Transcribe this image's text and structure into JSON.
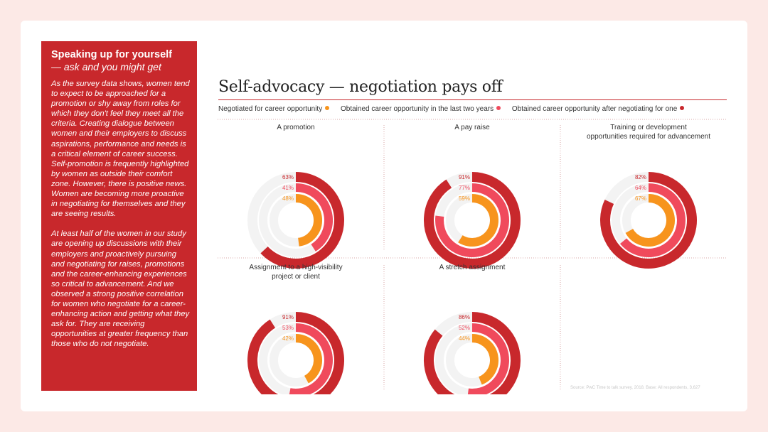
{
  "sidebar": {
    "heading": "Speaking up for yourself",
    "subheading": "— ask and you might get",
    "paragraph1": "As the survey data shows, women tend to expect to be approached for a promotion or shy away from roles for which they don't feel they meet all the criteria. Creating dialogue between women and their employers to discuss aspirations, performance and needs is a critical element of career success. Self-promotion is frequently highlighted by women as outside their comfort zone. However, there is positive news. Women are becoming more proactive in negotiating for themselves and they are seeing results.",
    "paragraph2": "At least half of the women in our study are opening up discussions with their employers and proactively pursuing and negotiating for raises, promotions and the career-enhancing experiences so critical to advancement. And we observed a strong positive correlation for women who negotiate for a career-enhancing action and getting what they ask for. They are receiving opportunities at greater frequency than those who do not negotiate."
  },
  "source": "Source: PwC Time to talk survey, 2018. Base: All respondents, 3,627",
  "colors": {
    "background": "#fce9e6",
    "sidebar": "#c8282c",
    "outer": "#c8282c",
    "middle": "#f04a5c",
    "inner": "#f7941d",
    "track": "#f3f3f3"
  },
  "chart_data": {
    "type": "radial-bar",
    "title": "Self-advocacy — negotiation pays off",
    "value_suffix": "%",
    "series": [
      {
        "name": "Negotiated for career opportunity",
        "color": "#f7941d"
      },
      {
        "name": "Obtained career opportunity in the last two years",
        "color": "#f04a5c"
      },
      {
        "name": "Obtained career opportunity after negotiating for one",
        "color": "#c8282c"
      }
    ],
    "panels": [
      {
        "title": [
          "A promotion"
        ],
        "negotiated": 48,
        "obtained_two_years": 41,
        "obtained_after_negotiating": 63
      },
      {
        "title": [
          "A pay raise"
        ],
        "negotiated": 59,
        "obtained_two_years": 77,
        "obtained_after_negotiating": 91
      },
      {
        "title": [
          "Training or development",
          "opportunities required for advancement"
        ],
        "negotiated": 67,
        "obtained_two_years": 64,
        "obtained_after_negotiating": 82
      },
      {
        "title": [
          "Assignment to a high-visibility",
          "project or client"
        ],
        "negotiated": 42,
        "obtained_two_years": 53,
        "obtained_after_negotiating": 91
      },
      {
        "title": [
          "A stretch assignment"
        ],
        "negotiated": 44,
        "obtained_two_years": 52,
        "obtained_after_negotiating": 86
      }
    ]
  }
}
